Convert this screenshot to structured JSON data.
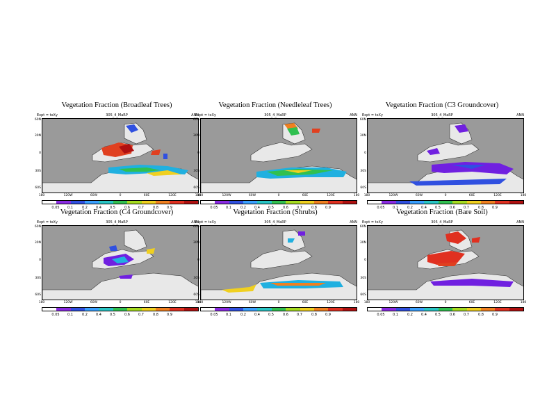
{
  "figure": {
    "subtitle_left": "Expt = txXy",
    "subtitle_center": "305_4_MaRP",
    "subtitle_right": "ANN",
    "lat_labels": [
      "60N",
      "30N",
      "0",
      "30S",
      "60S"
    ],
    "lon_labels": [
      "180",
      "120W",
      "60W",
      "0",
      "60E",
      "120E",
      "180"
    ],
    "colorbar_labels": [
      "0.05",
      "0.1",
      "0.2",
      "0.4",
      "0.5",
      "0.6",
      "0.7",
      "0.8",
      "0.9"
    ],
    "colorbar_colors": [
      "#ffffff",
      "#8a2be2",
      "#3050e0",
      "#3aa0ff",
      "#29c5c5",
      "#30c050",
      "#a6dc20",
      "#f0d020",
      "#f08020",
      "#e03020",
      "#b01010"
    ],
    "colors": {
      "ocean": "#9a9a9a",
      "land": "#e8e8e8",
      "low": "#7020e0",
      "mid": "#20b0e0",
      "high": "#e04020"
    }
  },
  "panels": [
    {
      "title": "Vegetation Fraction (Broadleaf Trees)",
      "subtitle_left": "Expt = txXy"
    },
    {
      "title": "Vegetation Fraction (Needleleaf Trees)",
      "subtitle_left": "Expt = txXy"
    },
    {
      "title": "Vegetation Fraction (C3 Groundcover)",
      "subtitle_left": "Expt = txXy"
    },
    {
      "title": "Vegetation Fraction (C4 Groundcover)",
      "subtitle_left": "Expt = txXy"
    },
    {
      "title": "Vegetation Fraction (Shrubs)",
      "subtitle_left": "Expt = txXy"
    },
    {
      "title": "Vegetation Fraction (Bare Soil)",
      "subtitle_left": "Expt = txXy"
    }
  ]
}
